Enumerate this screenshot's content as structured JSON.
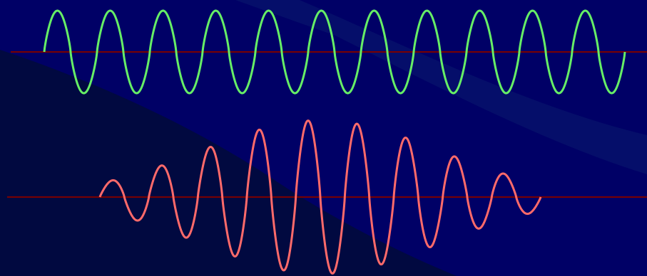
{
  "colors": {
    "background": "#000066",
    "background_deep": "#010a3a",
    "background_shade": "#000c55",
    "band": "#0a1a6e",
    "baseline": "#7a0000",
    "continuous_wave": "#66ee66",
    "packet_wave": "#ff6a6a"
  },
  "waves": {
    "continuous": {
      "description_free": true,
      "cycles": 11,
      "start_phase_deg": 0,
      "amplitude_ratio": 1.0,
      "envelope": "constant"
    },
    "packet": {
      "description_free": true,
      "cycles": 9,
      "start_phase_deg": 0,
      "amplitude_ratio": 1.0,
      "envelope": "gaussian"
    }
  }
}
